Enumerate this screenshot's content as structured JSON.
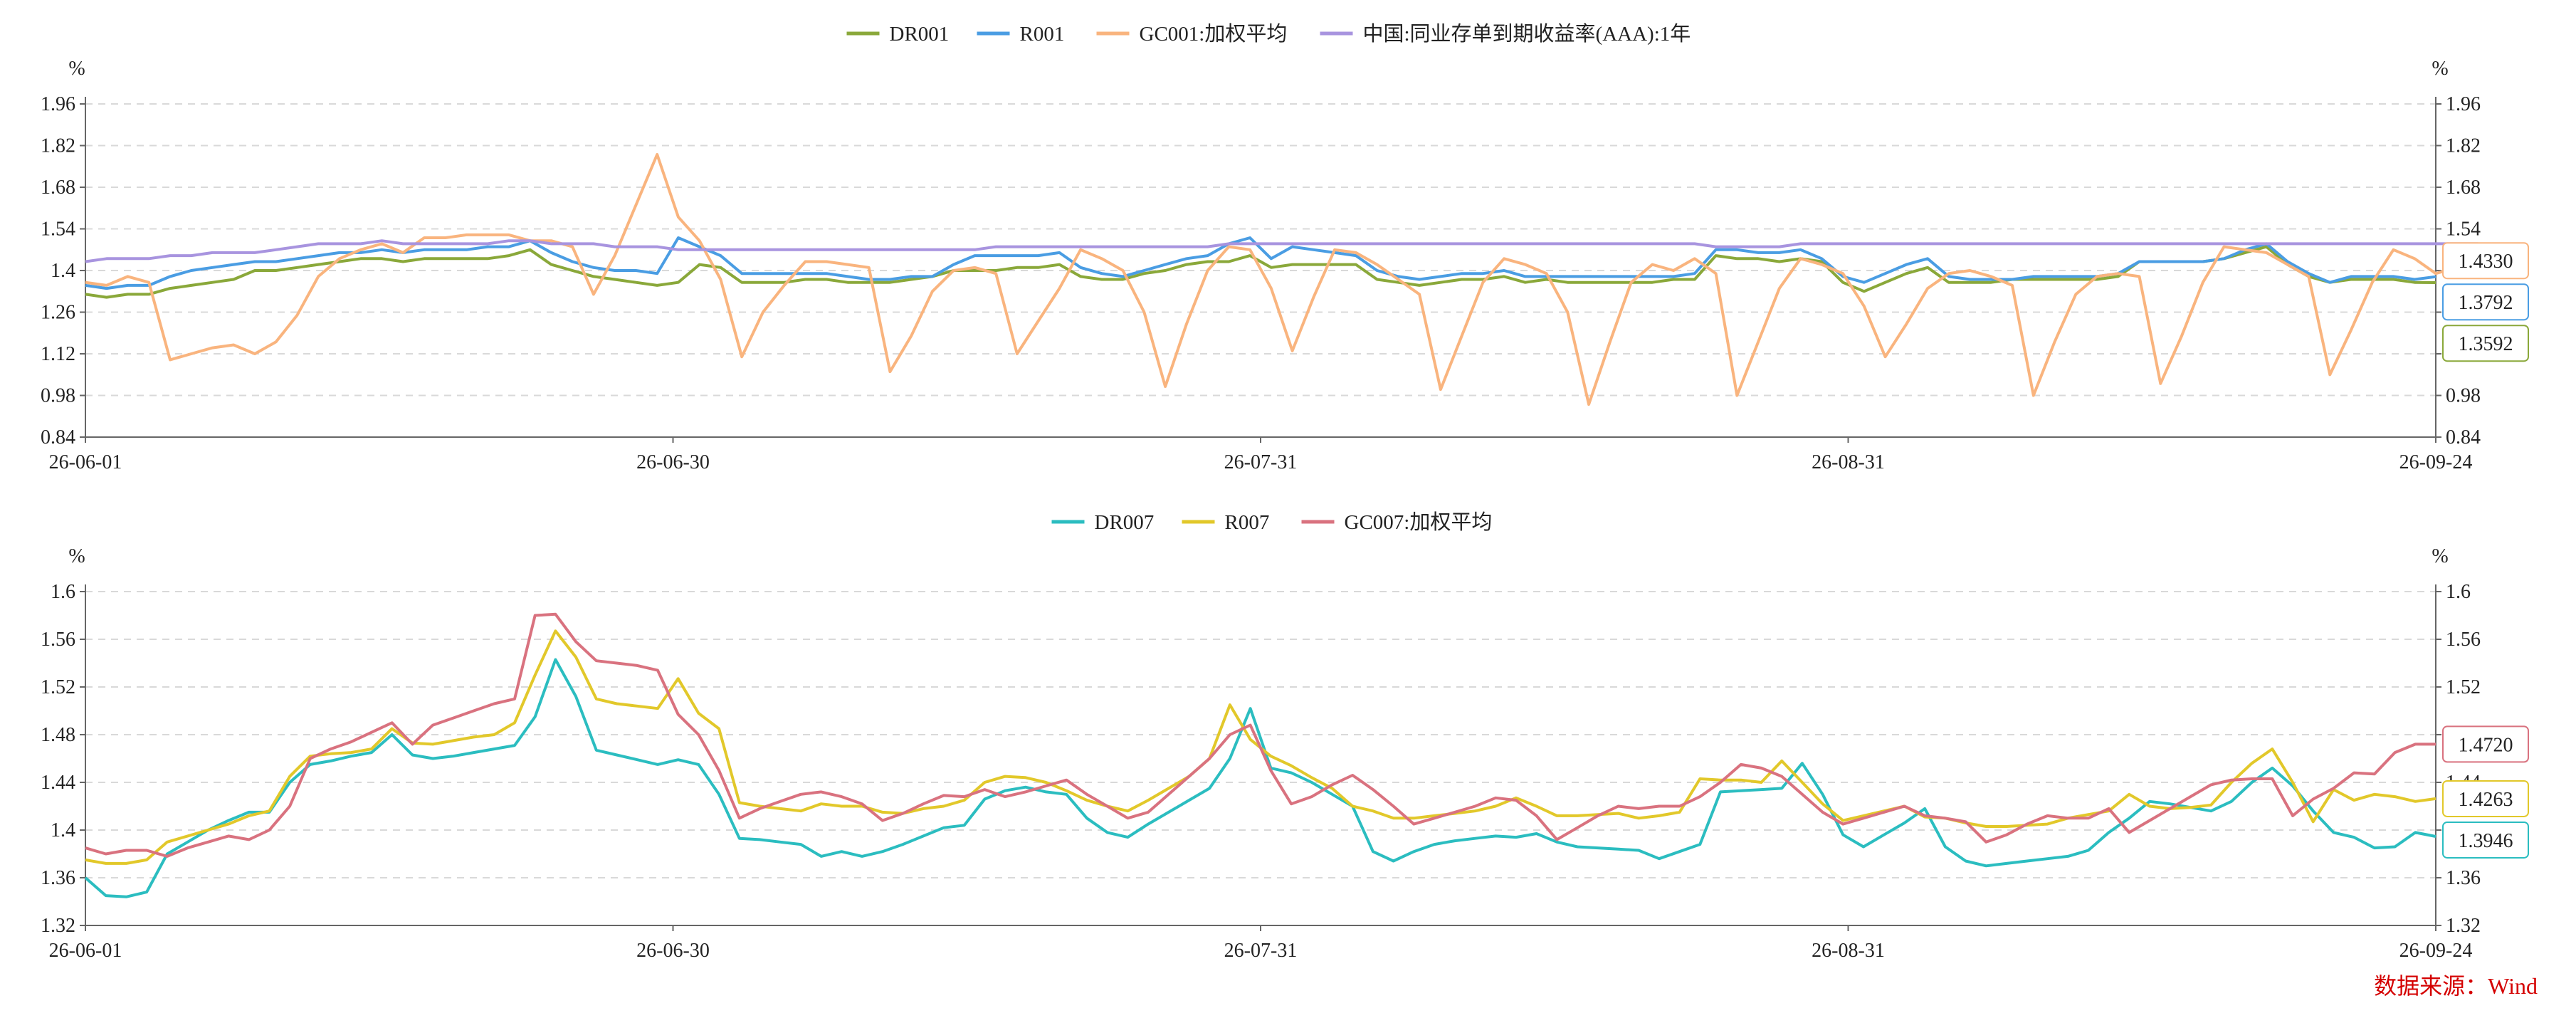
{
  "source": "数据来源：Wind",
  "chart_data": [
    {
      "type": "line",
      "yunit": "%",
      "ylim": [
        0.84,
        1.96
      ],
      "yticks": [
        "0.84",
        "0.98",
        "1.12",
        "1.26",
        "1.4",
        "1.54",
        "1.68",
        "1.82",
        "1.96"
      ],
      "xticks": [
        "26-06-01",
        "26-06-30",
        "26-07-31",
        "26-08-31",
        "26-09-24"
      ],
      "grid": true,
      "legend_position": "top-center",
      "series": [
        {
          "name": "DR001",
          "color": "#8aa83a",
          "last_label": "1.3592",
          "values": [
            1.32,
            1.31,
            1.32,
            1.32,
            1.34,
            1.35,
            1.36,
            1.37,
            1.4,
            1.4,
            1.41,
            1.42,
            1.43,
            1.44,
            1.44,
            1.43,
            1.44,
            1.44,
            1.44,
            1.44,
            1.45,
            1.47,
            1.42,
            1.4,
            1.38,
            1.37,
            1.36,
            1.35,
            1.36,
            1.42,
            1.41,
            1.36,
            1.36,
            1.36,
            1.37,
            1.37,
            1.36,
            1.36,
            1.36,
            1.37,
            1.38,
            1.4,
            1.4,
            1.4,
            1.41,
            1.41,
            1.42,
            1.38,
            1.37,
            1.37,
            1.39,
            1.4,
            1.42,
            1.43,
            1.43,
            1.45,
            1.41,
            1.42,
            1.42,
            1.42,
            1.42,
            1.37,
            1.36,
            1.35,
            1.36,
            1.37,
            1.37,
            1.38,
            1.36,
            1.37,
            1.36,
            1.36,
            1.36,
            1.36,
            1.36,
            1.37,
            1.37,
            1.45,
            1.44,
            1.44,
            1.43,
            1.44,
            1.43,
            1.36,
            1.33,
            1.36,
            1.39,
            1.41,
            1.36,
            1.36,
            1.36,
            1.37,
            1.37,
            1.37,
            1.37,
            1.37,
            1.38,
            1.43,
            1.43,
            1.43,
            1.43,
            1.44,
            1.46,
            1.48,
            1.42,
            1.38,
            1.36,
            1.37,
            1.37,
            1.37,
            1.36,
            1.3592
          ]
        },
        {
          "name": "R001",
          "color": "#4a9de3",
          "last_label": "1.3792",
          "values": [
            1.35,
            1.34,
            1.35,
            1.35,
            1.38,
            1.4,
            1.41,
            1.42,
            1.43,
            1.43,
            1.44,
            1.45,
            1.46,
            1.46,
            1.47,
            1.46,
            1.47,
            1.47,
            1.47,
            1.48,
            1.48,
            1.5,
            1.46,
            1.43,
            1.41,
            1.4,
            1.4,
            1.39,
            1.51,
            1.48,
            1.45,
            1.39,
            1.39,
            1.39,
            1.39,
            1.39,
            1.38,
            1.37,
            1.37,
            1.38,
            1.38,
            1.42,
            1.45,
            1.45,
            1.45,
            1.45,
            1.46,
            1.41,
            1.39,
            1.38,
            1.4,
            1.42,
            1.44,
            1.45,
            1.49,
            1.51,
            1.44,
            1.48,
            1.47,
            1.46,
            1.45,
            1.4,
            1.38,
            1.37,
            1.38,
            1.39,
            1.39,
            1.4,
            1.38,
            1.38,
            1.38,
            1.38,
            1.38,
            1.38,
            1.38,
            1.38,
            1.39,
            1.47,
            1.47,
            1.46,
            1.46,
            1.47,
            1.44,
            1.38,
            1.36,
            1.39,
            1.42,
            1.44,
            1.38,
            1.37,
            1.37,
            1.37,
            1.38,
            1.38,
            1.38,
            1.38,
            1.39,
            1.43,
            1.43,
            1.43,
            1.43,
            1.44,
            1.47,
            1.49,
            1.43,
            1.39,
            1.36,
            1.38,
            1.38,
            1.38,
            1.37,
            1.3792
          ]
        },
        {
          "name": "GC001:加权平均",
          "color": "#f9b47e",
          "last_label": "1.4330",
          "values": [
            1.36,
            1.35,
            1.38,
            1.36,
            1.1,
            1.12,
            1.14,
            1.15,
            1.12,
            1.16,
            1.25,
            1.38,
            1.44,
            1.47,
            1.49,
            1.46,
            1.51,
            1.51,
            1.52,
            1.52,
            1.52,
            1.5,
            1.5,
            1.48,
            1.32,
            1.45,
            1.62,
            1.79,
            1.58,
            1.5,
            1.37,
            1.11,
            1.26,
            1.35,
            1.43,
            1.43,
            1.42,
            1.41,
            1.06,
            1.18,
            1.33,
            1.4,
            1.41,
            1.39,
            1.12,
            1.23,
            1.34,
            1.47,
            1.44,
            1.4,
            1.26,
            1.01,
            1.22,
            1.4,
            1.48,
            1.47,
            1.34,
            1.13,
            1.31,
            1.47,
            1.46,
            1.42,
            1.37,
            1.32,
            1.0,
            1.18,
            1.36,
            1.44,
            1.42,
            1.39,
            1.26,
            0.95,
            1.16,
            1.36,
            1.42,
            1.4,
            1.44,
            1.39,
            0.98,
            1.16,
            1.34,
            1.44,
            1.42,
            1.39,
            1.28,
            1.11,
            1.22,
            1.34,
            1.39,
            1.4,
            1.38,
            1.35,
            0.98,
            1.16,
            1.32,
            1.38,
            1.39,
            1.38,
            1.02,
            1.18,
            1.36,
            1.48,
            1.47,
            1.46,
            1.42,
            1.38,
            1.05,
            1.2,
            1.36,
            1.47,
            1.44,
            1.39,
            1.41,
            1.433
          ]
        },
        {
          "name": "中国:同业存单到期收益率(AAA):1年",
          "color": "#a894df",
          "last_label": "",
          "values": [
            1.43,
            1.44,
            1.44,
            1.44,
            1.45,
            1.45,
            1.46,
            1.46,
            1.46,
            1.47,
            1.48,
            1.49,
            1.49,
            1.49,
            1.5,
            1.49,
            1.49,
            1.49,
            1.49,
            1.49,
            1.5,
            1.5,
            1.49,
            1.49,
            1.49,
            1.48,
            1.48,
            1.48,
            1.47,
            1.47,
            1.47,
            1.47,
            1.47,
            1.47,
            1.47,
            1.47,
            1.47,
            1.47,
            1.47,
            1.47,
            1.47,
            1.47,
            1.47,
            1.48,
            1.48,
            1.48,
            1.48,
            1.48,
            1.48,
            1.48,
            1.48,
            1.48,
            1.48,
            1.48,
            1.49,
            1.49,
            1.49,
            1.49,
            1.49,
            1.49,
            1.49,
            1.49,
            1.49,
            1.49,
            1.49,
            1.49,
            1.49,
            1.49,
            1.49,
            1.49,
            1.49,
            1.49,
            1.49,
            1.49,
            1.49,
            1.49,
            1.49,
            1.48,
            1.48,
            1.48,
            1.48,
            1.49,
            1.49,
            1.49,
            1.49,
            1.49,
            1.49,
            1.49,
            1.49,
            1.49,
            1.49,
            1.49,
            1.49,
            1.49,
            1.49,
            1.49,
            1.49,
            1.49,
            1.49,
            1.49,
            1.49,
            1.49,
            1.49,
            1.49,
            1.49,
            1.49,
            1.49,
            1.49,
            1.49,
            1.49,
            1.49,
            1.49,
            1.49,
            1.49
          ]
        }
      ]
    },
    {
      "type": "line",
      "yunit": "%",
      "ylim": [
        1.32,
        1.6
      ],
      "yticks": [
        "1.32",
        "1.36",
        "1.4",
        "1.44",
        "1.48",
        "1.52",
        "1.56",
        "1.6"
      ],
      "xticks": [
        "26-06-01",
        "26-06-30",
        "26-07-31",
        "26-08-31",
        "26-09-24"
      ],
      "grid": true,
      "legend_position": "top-center",
      "series": [
        {
          "name": "DR007",
          "color": "#2bbdc0",
          "last_label": "1.3946",
          "values": [
            1.36,
            1.345,
            1.344,
            1.348,
            1.38,
            1.39,
            1.4,
            1.408,
            1.415,
            1.415,
            1.44,
            1.455,
            1.458,
            1.462,
            1.465,
            1.48,
            1.463,
            1.46,
            1.462,
            1.465,
            1.468,
            1.471,
            1.495,
            1.543,
            1.512,
            1.467,
            1.463,
            1.459,
            1.455,
            1.459,
            1.455,
            1.43,
            1.393,
            1.392,
            1.39,
            1.388,
            1.378,
            1.382,
            1.378,
            1.382,
            1.388,
            1.395,
            1.402,
            1.404,
            1.426,
            1.433,
            1.436,
            1.432,
            1.43,
            1.41,
            1.398,
            1.394,
            1.405,
            1.415,
            1.425,
            1.435,
            1.46,
            1.502,
            1.452,
            1.448,
            1.44,
            1.43,
            1.42,
            1.382,
            1.374,
            1.382,
            1.388,
            1.391,
            1.393,
            1.395,
            1.394,
            1.397,
            1.39,
            1.386,
            1.385,
            1.384,
            1.383,
            1.376,
            1.382,
            1.388,
            1.432,
            1.433,
            1.434,
            1.435,
            1.456,
            1.43,
            1.396,
            1.386,
            1.396,
            1.406,
            1.418,
            1.386,
            1.374,
            1.37,
            1.372,
            1.374,
            1.376,
            1.378,
            1.383,
            1.398,
            1.41,
            1.424,
            1.422,
            1.419,
            1.416,
            1.424,
            1.44,
            1.452,
            1.437,
            1.416,
            1.398,
            1.394,
            1.385,
            1.386,
            1.398,
            1.3946
          ]
        },
        {
          "name": "R007",
          "color": "#e2c82a",
          "last_label": "1.4263",
          "values": [
            1.375,
            1.372,
            1.372,
            1.375,
            1.39,
            1.395,
            1.4,
            1.405,
            1.412,
            1.416,
            1.445,
            1.462,
            1.464,
            1.465,
            1.468,
            1.485,
            1.473,
            1.472,
            1.475,
            1.478,
            1.48,
            1.49,
            1.53,
            1.567,
            1.545,
            1.51,
            1.506,
            1.504,
            1.502,
            1.527,
            1.498,
            1.485,
            1.423,
            1.42,
            1.418,
            1.416,
            1.422,
            1.42,
            1.42,
            1.415,
            1.414,
            1.418,
            1.42,
            1.425,
            1.44,
            1.445,
            1.444,
            1.44,
            1.433,
            1.425,
            1.42,
            1.416,
            1.425,
            1.435,
            1.445,
            1.46,
            1.505,
            1.476,
            1.462,
            1.454,
            1.444,
            1.435,
            1.42,
            1.416,
            1.41,
            1.41,
            1.412,
            1.414,
            1.416,
            1.42,
            1.427,
            1.42,
            1.412,
            1.412,
            1.413,
            1.414,
            1.41,
            1.412,
            1.415,
            1.443,
            1.442,
            1.442,
            1.44,
            1.458,
            1.44,
            1.422,
            1.408,
            1.412,
            1.416,
            1.42,
            1.411,
            1.41,
            1.406,
            1.403,
            1.403,
            1.404,
            1.405,
            1.41,
            1.413,
            1.416,
            1.43,
            1.42,
            1.418,
            1.419,
            1.421,
            1.44,
            1.456,
            1.468,
            1.44,
            1.407,
            1.434,
            1.425,
            1.43,
            1.428,
            1.424,
            1.4263
          ]
        },
        {
          "name": "GC007:加权平均",
          "color": "#d9727f",
          "last_label": "1.4720",
          "values": [
            1.385,
            1.38,
            1.383,
            1.383,
            1.378,
            1.385,
            1.39,
            1.395,
            1.392,
            1.4,
            1.42,
            1.46,
            1.468,
            1.474,
            1.482,
            1.49,
            1.472,
            1.488,
            1.494,
            1.5,
            1.506,
            1.51,
            1.58,
            1.581,
            1.558,
            1.542,
            1.54,
            1.538,
            1.534,
            1.497,
            1.48,
            1.45,
            1.41,
            1.418,
            1.424,
            1.43,
            1.432,
            1.428,
            1.422,
            1.408,
            1.414,
            1.422,
            1.429,
            1.428,
            1.434,
            1.428,
            1.432,
            1.437,
            1.442,
            1.43,
            1.42,
            1.41,
            1.415,
            1.43,
            1.445,
            1.46,
            1.48,
            1.488,
            1.45,
            1.422,
            1.428,
            1.438,
            1.446,
            1.434,
            1.42,
            1.405,
            1.41,
            1.415,
            1.42,
            1.427,
            1.425,
            1.412,
            1.392,
            1.402,
            1.412,
            1.42,
            1.418,
            1.42,
            1.42,
            1.428,
            1.44,
            1.455,
            1.452,
            1.445,
            1.43,
            1.415,
            1.405,
            1.41,
            1.415,
            1.42,
            1.412,
            1.41,
            1.407,
            1.39,
            1.396,
            1.405,
            1.412,
            1.41,
            1.41,
            1.418,
            1.398,
            1.408,
            1.418,
            1.428,
            1.438,
            1.442,
            1.443,
            1.443,
            1.412,
            1.426,
            1.435,
            1.448,
            1.447,
            1.465,
            1.472,
            1.472
          ]
        }
      ]
    }
  ]
}
